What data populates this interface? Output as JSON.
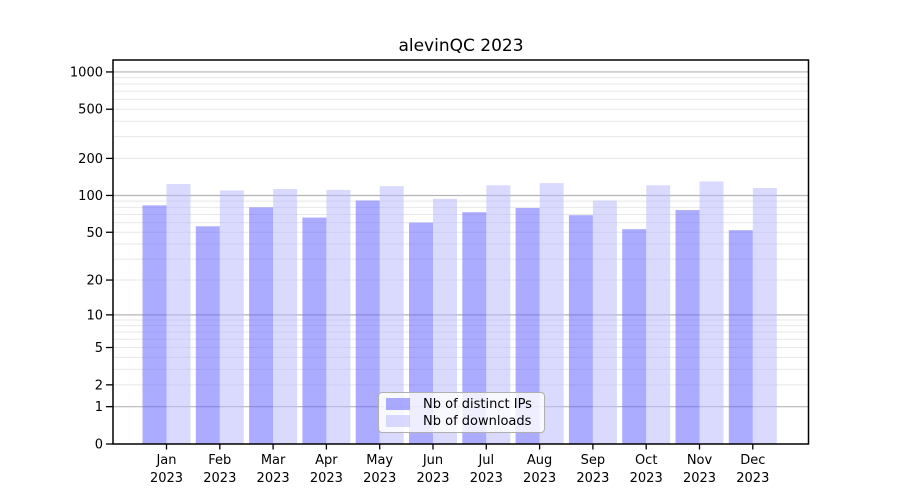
{
  "title": "alevinQC 2023",
  "chart_data": {
    "type": "bar",
    "title": "alevinQC 2023",
    "categories": [
      "Jan",
      "Feb",
      "Mar",
      "Apr",
      "May",
      "Jun",
      "Jul",
      "Aug",
      "Sep",
      "Oct",
      "Nov",
      "Dec"
    ],
    "x_tick_year": "2023",
    "series": [
      {
        "name": "Nb of distinct IPs",
        "color": "rgba(102,102,255,0.55)",
        "values": [
          83,
          56,
          80,
          66,
          91,
          60,
          73,
          79,
          69,
          53,
          76,
          52
        ]
      },
      {
        "name": "Nb of downloads",
        "color": "rgba(187,187,255,0.55)",
        "values": [
          124,
          110,
          113,
          111,
          119,
          94,
          121,
          126,
          91,
          121,
          130,
          115
        ]
      }
    ],
    "y_ticks": [
      0,
      1,
      2,
      5,
      10,
      20,
      50,
      100,
      200,
      500,
      1000
    ],
    "y_scale": "log10(1+x)",
    "ylim": [
      0,
      1250
    ],
    "grid": true,
    "legend_position": "lower center",
    "colors": {
      "grid_minor": "#e7e7e7",
      "grid_major": "#b4b4b4",
      "spine": "#000000",
      "tick_label": "#000000",
      "background": "#ffffff"
    }
  },
  "legend": {
    "items": [
      {
        "label": "Nb of distinct IPs"
      },
      {
        "label": "Nb of downloads"
      }
    ]
  }
}
